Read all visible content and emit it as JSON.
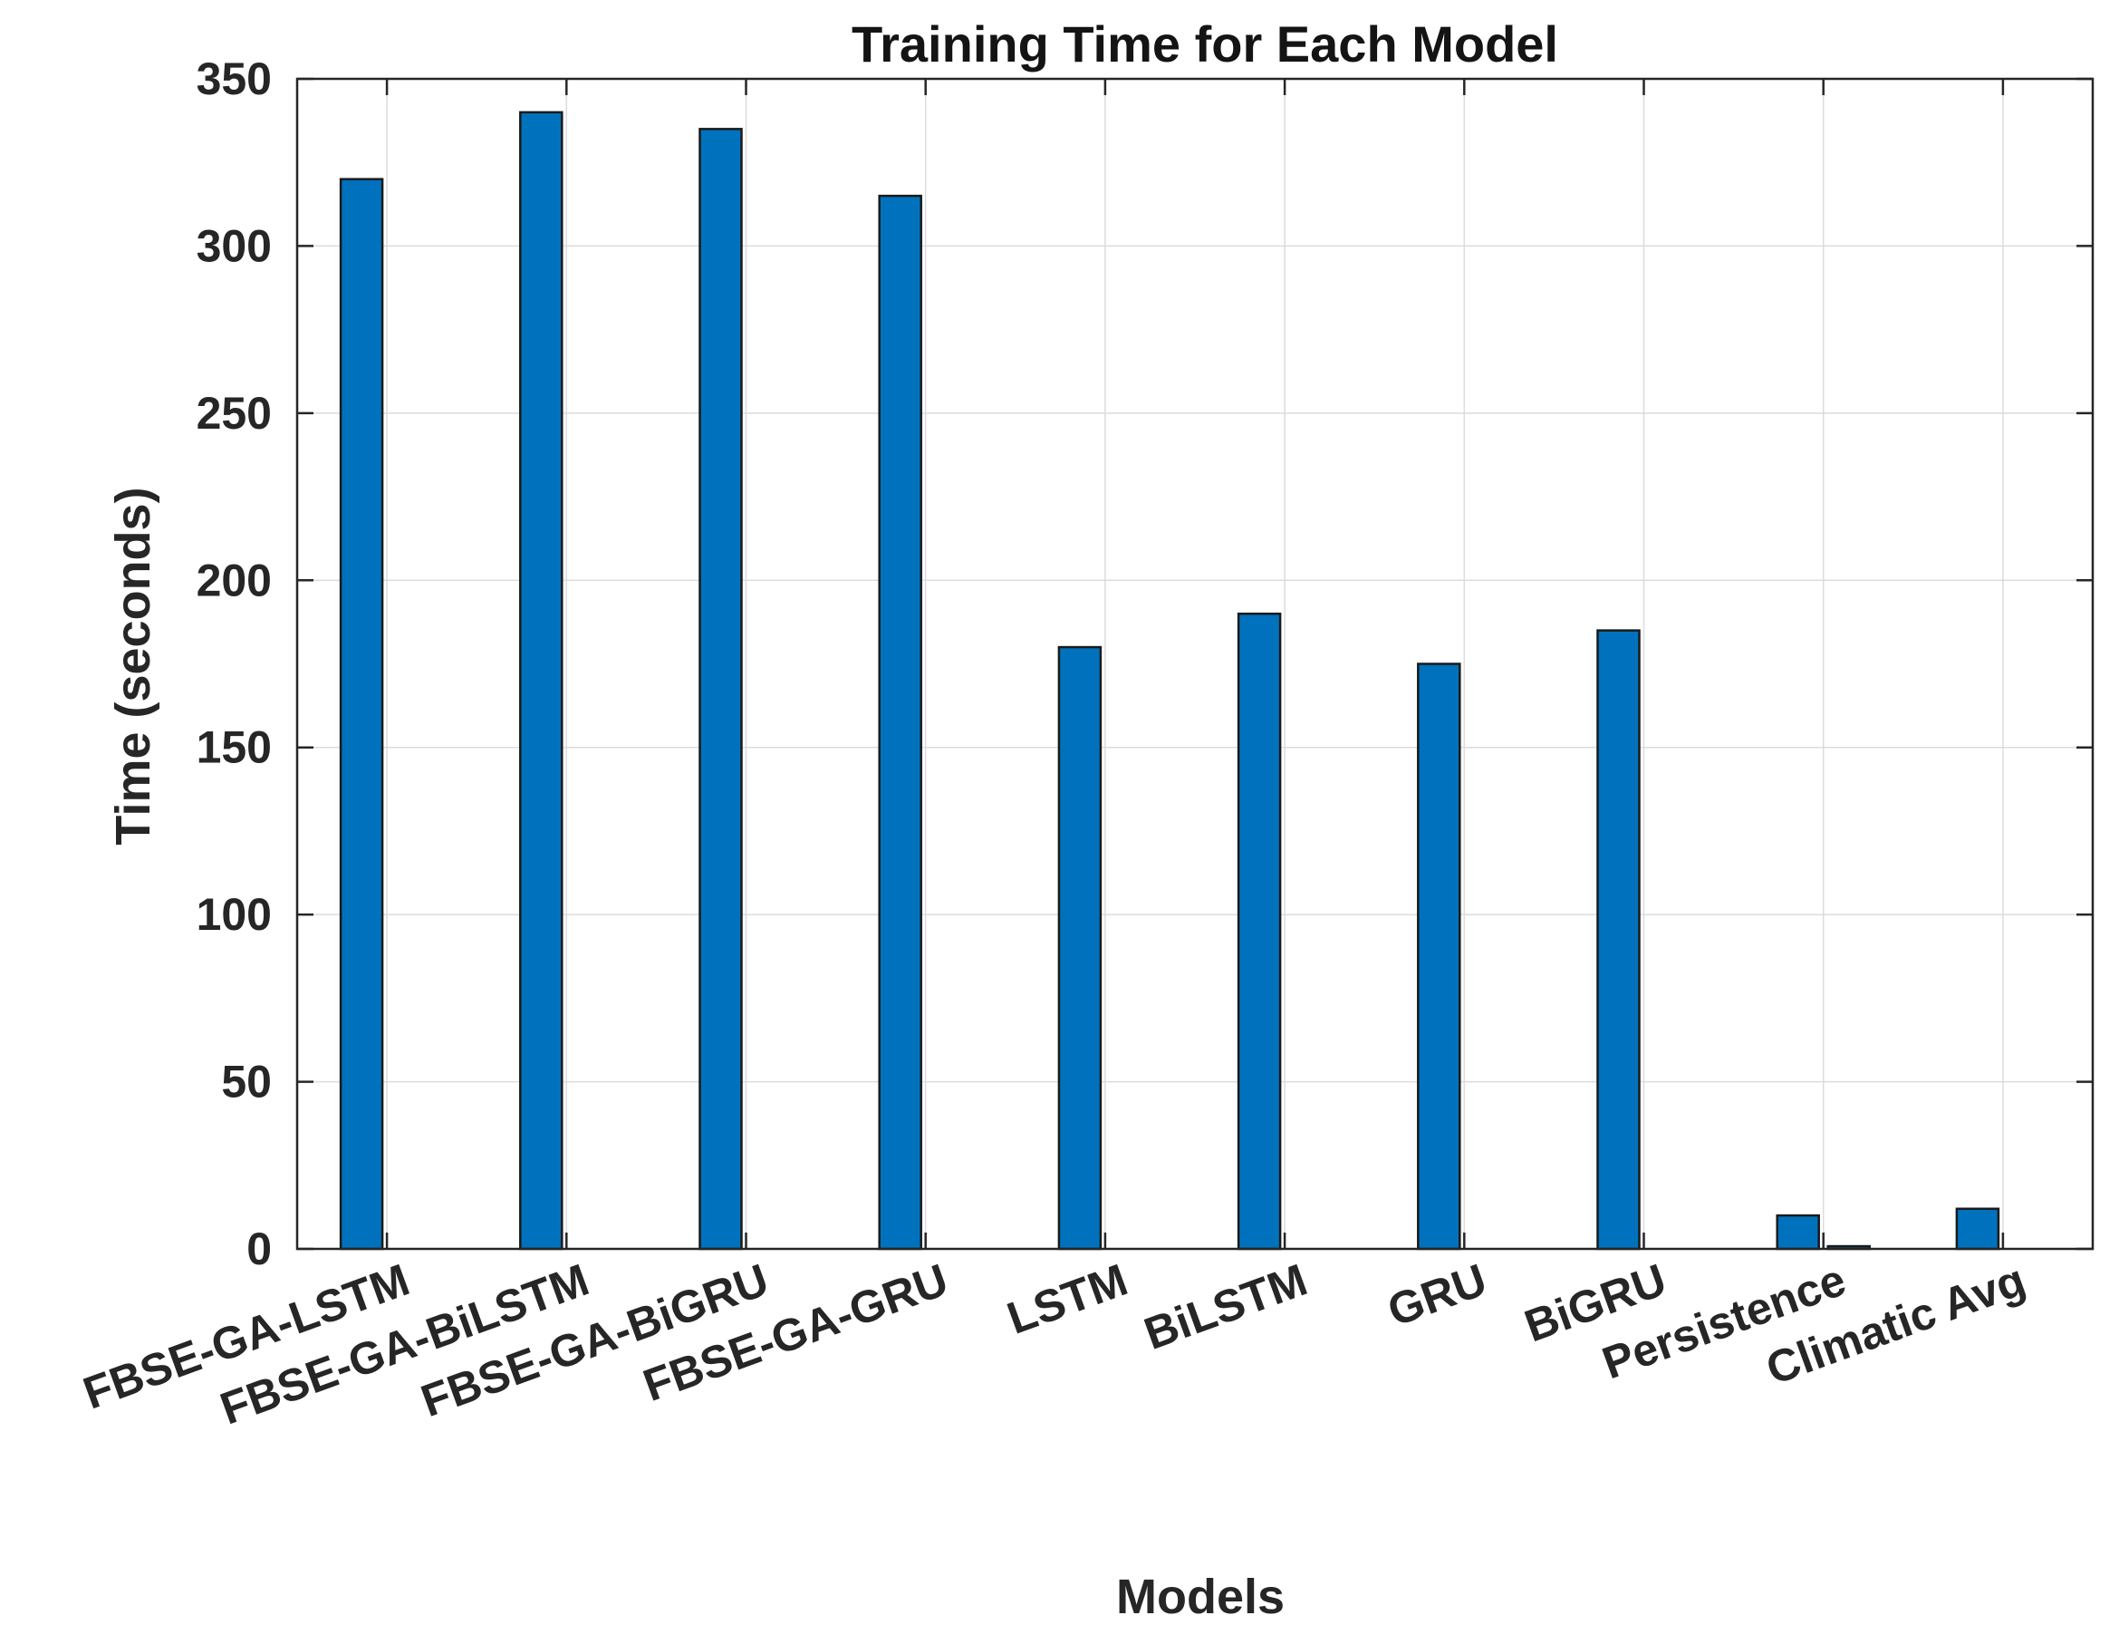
{
  "chart_data": {
    "type": "bar",
    "title": "Training  Time for Each Model",
    "xlabel": "Models",
    "ylabel": "Time (seconds)",
    "categories": [
      "FBSE-GA-LSTM",
      "FBSE-GA-BiLSTM",
      "FBSE-GA-BiGRU",
      "FBSE-GA-GRU",
      "LSTM",
      "BiLSTM",
      "GRU",
      "BiGRU",
      "Persistence",
      "Climatic Avg"
    ],
    "series": [
      {
        "values": [
          320,
          340,
          335,
          315,
          180,
          190,
          175,
          185,
          10,
          12
        ]
      },
      {
        "values": [
          0,
          0,
          0,
          0,
          0,
          0,
          0,
          0,
          0.8,
          0
        ]
      }
    ],
    "ylim": [
      0,
      350
    ],
    "yticks": [
      0,
      50,
      100,
      150,
      200,
      250,
      300,
      350
    ],
    "grid": true,
    "bar_color": "#0072BD"
  }
}
